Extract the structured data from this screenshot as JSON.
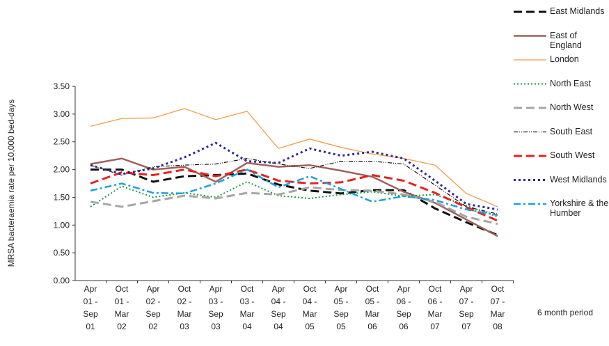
{
  "chart_data": {
    "type": "line",
    "y_label": "MRSA bacteraemia rate per 10,000 bed-days",
    "x_label": "6 month period",
    "categories": [
      [
        "Apr",
        "01 -",
        "Sep",
        "01"
      ],
      [
        "Oct",
        "01 -",
        "Mar",
        "02"
      ],
      [
        "Apr",
        "02 -",
        "Sep",
        "02"
      ],
      [
        "Oct",
        "02 -",
        "Mar",
        "03"
      ],
      [
        "Apr",
        "03 -",
        "Sep",
        "03"
      ],
      [
        "Oct",
        "03 -",
        "Mar",
        "04"
      ],
      [
        "Apr",
        "04 -",
        "Sep",
        "04"
      ],
      [
        "Oct",
        "04 -",
        "Mar",
        "05"
      ],
      [
        "Apr",
        "05 -",
        "Sep",
        "05"
      ],
      [
        "Oct",
        "05 -",
        "Mar",
        "06"
      ],
      [
        "Apr",
        "06 -",
        "Sep",
        "06"
      ],
      [
        "Oct",
        "06 -",
        "Mar",
        "07"
      ],
      [
        "Apr",
        "07 -",
        "Sep",
        "07"
      ],
      [
        "Oct",
        "07 -",
        "Mar",
        "08"
      ]
    ],
    "ylim": [
      0,
      3.5
    ],
    "yticks": [
      {
        "value": 0,
        "label": "0.00"
      },
      {
        "value": 0.5,
        "label": "0.50"
      },
      {
        "value": 1,
        "label": "1.00"
      },
      {
        "value": 1.5,
        "label": "1.50"
      },
      {
        "value": 2,
        "label": "2.00"
      },
      {
        "value": 2.5,
        "label": "2.50"
      },
      {
        "value": 3,
        "label": "3.00"
      },
      {
        "value": 3.5,
        "label": "3.50"
      }
    ],
    "series": [
      {
        "name": "East Midlands",
        "color": "#111111",
        "dash": "12 6",
        "width": 3,
        "values": [
          2.0,
          2.0,
          1.78,
          1.88,
          1.9,
          1.93,
          1.73,
          1.62,
          1.57,
          1.63,
          1.63,
          1.3,
          1.05,
          0.82
        ]
      },
      {
        "name": "East of England",
        "color": "#a0605a",
        "dash": "none",
        "width": 2.5,
        "values": [
          2.1,
          2.2,
          2.0,
          2.05,
          1.78,
          2.12,
          2.05,
          2.08,
          1.98,
          1.87,
          1.6,
          1.4,
          1.1,
          0.8
        ]
      },
      {
        "name": "London",
        "color": "#f59b4c",
        "dash": "none",
        "width": 1.3,
        "values": [
          2.78,
          2.92,
          2.93,
          3.1,
          2.9,
          3.05,
          2.38,
          2.55,
          2.4,
          2.28,
          2.2,
          2.08,
          1.57,
          1.33
        ]
      },
      {
        "name": "North East",
        "color": "#1a9a3a",
        "dash": "2 3",
        "width": 2,
        "values": [
          1.33,
          1.7,
          1.5,
          1.58,
          1.5,
          1.78,
          1.53,
          1.48,
          1.55,
          1.6,
          1.52,
          1.55,
          1.35,
          1.15
        ]
      },
      {
        "name": "North West",
        "color": "#a6a6a6",
        "dash": "12 6",
        "width": 3,
        "values": [
          1.42,
          1.33,
          1.43,
          1.53,
          1.48,
          1.58,
          1.55,
          1.68,
          1.63,
          1.62,
          1.55,
          1.42,
          1.15,
          1.02
        ]
      },
      {
        "name": "South East",
        "color": "#111111",
        "dash": "6 2 1 2 1 2",
        "width": 1.2,
        "values": [
          2.08,
          1.9,
          2.05,
          2.08,
          2.1,
          2.2,
          2.1,
          2.02,
          2.15,
          2.15,
          2.1,
          1.72,
          1.33,
          1.2
        ]
      },
      {
        "name": "South West",
        "color": "#e8211d",
        "dash": "12 6",
        "width": 3,
        "values": [
          1.75,
          1.95,
          1.9,
          2.0,
          1.88,
          2.0,
          1.8,
          1.75,
          1.77,
          1.9,
          1.8,
          1.58,
          1.32,
          1.08
        ]
      },
      {
        "name": "West Midlands",
        "color": "#2a2a9a",
        "dash": "3 4",
        "width": 3,
        "values": [
          2.08,
          1.92,
          2.02,
          2.22,
          2.48,
          2.15,
          2.12,
          2.38,
          2.25,
          2.32,
          2.2,
          1.8,
          1.38,
          1.28
        ]
      },
      {
        "name": "Yorkshire & the Humber",
        "color": "#1aa0e0",
        "dash": "10 4 3 4",
        "width": 2.5,
        "values": [
          1.62,
          1.75,
          1.58,
          1.57,
          1.75,
          2.0,
          1.68,
          1.88,
          1.65,
          1.42,
          1.52,
          1.45,
          1.28,
          1.18
        ]
      }
    ]
  }
}
